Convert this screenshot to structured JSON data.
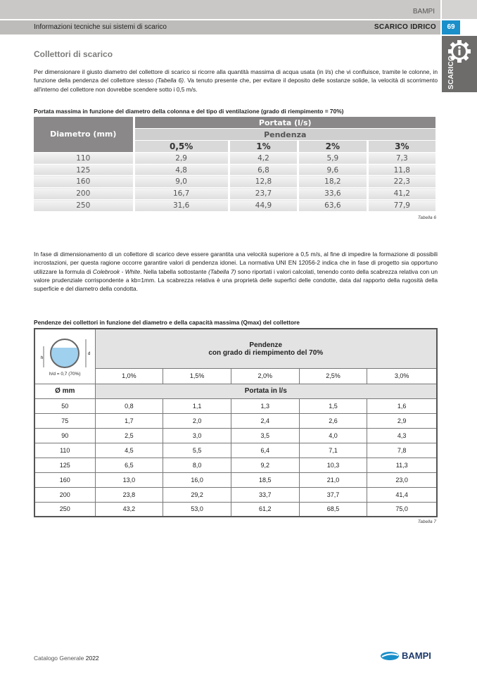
{
  "header": {
    "brand": "BAMPI",
    "section": "Informazioni tecniche sui sistemi di scarico",
    "chapter": "SCARICO IDRICO",
    "page": "69",
    "side_tab": "SCARICO"
  },
  "title": "Collettori di scarico",
  "intro": [
    "Per dimensionare il giusto diametro del collettore di scarico si ricorre alla quantità massima di acqua usata (in l/s) che vi confluisce, tramite le colonne, in funzione della pendenza del collettore stesso ",
    "(Tabella 6)",
    ". Va tenuto presente che, per evitare il deposito delle sostanze solide, la velocità di scorrimento all'interno del collettore non dovrebbe scendere sotto i 0,5 m/s."
  ],
  "table6": {
    "caption": "Portata massima in funzione del diametro della colonna e del tipo di ventilazione (grado di riempimento = 70%)",
    "col0": "Diametro (mm)",
    "group": "Portata (l/s)",
    "subgroup": "Pendenza",
    "cols": [
      "0,5%",
      "1%",
      "2%",
      "3%"
    ],
    "rows": [
      [
        "110",
        "2,9",
        "4,2",
        "5,9",
        "7,3"
      ],
      [
        "125",
        "4,8",
        "6,8",
        "9,6",
        "11,8"
      ],
      [
        "160",
        "9,0",
        "12,8",
        "18,2",
        "22,3"
      ],
      [
        "200",
        "16,7",
        "23,7",
        "33,6",
        "41,2"
      ],
      [
        "250",
        "31,6",
        "44,9",
        "63,6",
        "77,9"
      ]
    ],
    "note": "Tabella 6"
  },
  "para2": [
    "In fase di dimensionamento di un collettore di scarico deve essere garantita una velocità superiore a 0,5 m/s, al fine di impedire la formazione di possibili incrostazioni, per questa ragione occorre garantire valori di pendenza idonei. La normativa UNI EN 12056-2 indica che in fase di progetto sia opportuno utilizzare la formula di ",
    "Colebrook - White",
    ". Nella tabella sottostante ",
    "(Tabella 7)",
    " sono riportati i valori calcolati, tenendo conto della scabrezza relativa con un valore prudenziale corrispondente a kb=1mm. La scabrezza relativa è una proprietà delle superfici delle condotte, data dal rapporto della rugosità della superficie e del diametro della condotta."
  ],
  "table7": {
    "caption": "Pendenze dei collettori in funzione del diametro e della capacità massima (Qmax) del collettore",
    "diagram": {
      "h": "h",
      "d": "d",
      "ratio": "h/d = 0,7 (70%)"
    },
    "title1": "Pendenze",
    "title2": "con grado di riempimento del 70%",
    "cols": [
      "1,0%",
      "1,5%",
      "2,0%",
      "2,5%",
      "3,0%"
    ],
    "col0": "Ø mm",
    "unit": "Portata in l/s",
    "rows": [
      [
        "50",
        "0,8",
        "1,1",
        "1,3",
        "1,5",
        "1,6"
      ],
      [
        "75",
        "1,7",
        "2,0",
        "2,4",
        "2,6",
        "2,9"
      ],
      [
        "90",
        "2,5",
        "3,0",
        "3,5",
        "4,0",
        "4,3"
      ],
      [
        "110",
        "4,5",
        "5,5",
        "6,4",
        "7,1",
        "7,8"
      ],
      [
        "125",
        "6,5",
        "8,0",
        "9,2",
        "10,3",
        "11,3"
      ],
      [
        "160",
        "13,0",
        "16,0",
        "18,5",
        "21,0",
        "23,0"
      ],
      [
        "200",
        "23,8",
        "29,2",
        "33,7",
        "37,7",
        "41,4"
      ],
      [
        "250",
        "43,2",
        "53,0",
        "61,2",
        "68,5",
        "75,0"
      ]
    ],
    "note": "Tabella 7"
  },
  "footer": {
    "catalog": "Catalogo Generale",
    "year": "2022",
    "logo": "BAMPI"
  },
  "colors": {
    "accent": "#1a8fc9",
    "header_gray": "#bdbcba",
    "logo": "#1d3a6b"
  }
}
